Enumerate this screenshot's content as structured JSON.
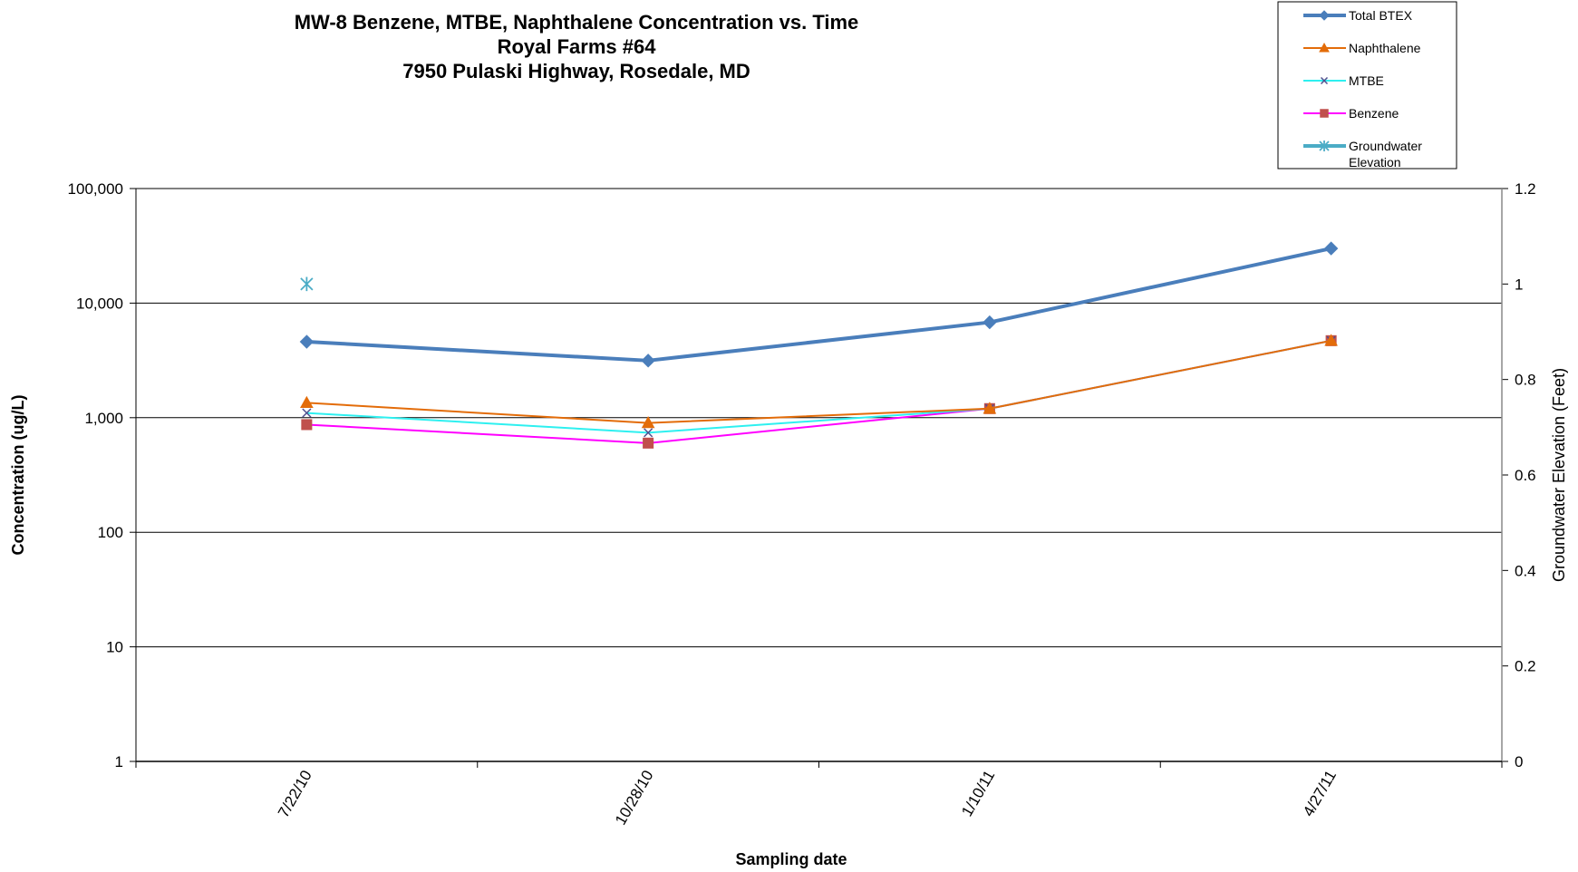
{
  "chart_data": {
    "type": "line",
    "title": [
      "MW-8 Benzene, MTBE, Naphthalene Concentration vs. Time",
      "Royal Farms #64",
      "7950 Pulaski Highway, Rosedale, MD"
    ],
    "xlabel": "Sampling date",
    "ylabel": "Concentration (ug/L)",
    "y2label": "Groundwater Elevation (Feet)",
    "categories": [
      "7/22/10",
      "10/28/10",
      "1/10/11",
      "4/27/11"
    ],
    "y_scale": "log",
    "ylim": [
      1,
      100000
    ],
    "y_ticks": [
      {
        "value": 1,
        "label": "1"
      },
      {
        "value": 10,
        "label": "10"
      },
      {
        "value": 100,
        "label": "100"
      },
      {
        "value": 1000,
        "label": "1,000"
      },
      {
        "value": 10000,
        "label": "10,000"
      },
      {
        "value": 100000,
        "label": "100,000"
      }
    ],
    "y2lim": [
      0,
      1.2
    ],
    "y2_ticks": [
      {
        "value": 0,
        "label": "0"
      },
      {
        "value": 0.2,
        "label": "0.2"
      },
      {
        "value": 0.4,
        "label": "0.4"
      },
      {
        "value": 0.6,
        "label": "0.6"
      },
      {
        "value": 0.8,
        "label": "0.8"
      },
      {
        "value": 1.0,
        "label": "1"
      },
      {
        "value": 1.2,
        "label": "1.2"
      }
    ],
    "grid": true,
    "legend_position": "top-right",
    "series": [
      {
        "name": "Total BTEX",
        "axis": "left",
        "values": [
          4600,
          3150,
          6800,
          30000
        ],
        "color": "#4a7ebb",
        "marker": "diamond"
      },
      {
        "name": "Naphthalene",
        "axis": "left",
        "values": [
          1350,
          900,
          1200,
          4700
        ],
        "color": "#e36c09",
        "marker": "triangle"
      },
      {
        "name": "MTBE",
        "axis": "left",
        "values": [
          1100,
          740,
          1200,
          4700
        ],
        "color": "#2ef0f0",
        "marker": "x"
      },
      {
        "name": "Benzene",
        "axis": "left",
        "values": [
          870,
          600,
          1200,
          4700
        ],
        "color": "#ff00ff",
        "marker": "square"
      },
      {
        "name": "Groundwater Elevation",
        "axis": "right",
        "values": [
          1.0,
          null,
          null,
          null
        ],
        "color": "#4bacc6",
        "marker": "star"
      }
    ]
  }
}
